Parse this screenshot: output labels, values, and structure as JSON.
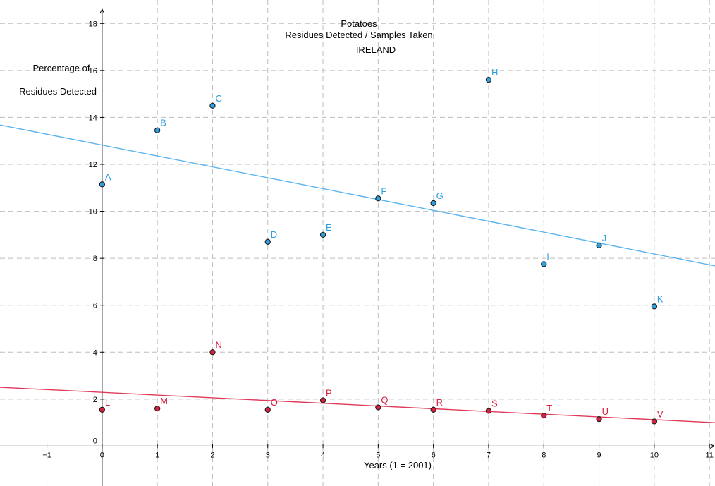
{
  "chart_data": {
    "type": "scatter",
    "title_lines": [
      "Potatoes",
      "Residues Detected / Samples Taken",
      "IRELAND"
    ],
    "ylabel_lines": [
      "Percentage of",
      "Residues Detected"
    ],
    "xlabel": "Years (1 = 2001)",
    "xlim": [
      -1.85,
      11.1
    ],
    "ylim": [
      -1.7,
      19.0
    ],
    "x_ticks": [
      -1,
      0,
      1,
      2,
      3,
      4,
      5,
      6,
      7,
      8,
      9,
      10,
      11
    ],
    "x_tick_labels": [
      "−1",
      "0",
      "1",
      "2",
      "3",
      "4",
      "5",
      "6",
      "7",
      "8",
      "9",
      "10",
      "11"
    ],
    "y_ticks": [
      2,
      4,
      6,
      8,
      10,
      12,
      14,
      16,
      18
    ],
    "y_tick_labels": [
      "2",
      "4",
      "6",
      "8",
      "10",
      "12",
      "14",
      "16",
      "18"
    ],
    "origin_label": "0",
    "grid": true,
    "series": [
      {
        "color": "#2f9fe0",
        "line_color": "#5ab4ee",
        "points": [
          {
            "label": "A",
            "x": 0,
            "y": 11.15
          },
          {
            "label": "B",
            "x": 1,
            "y": 13.45
          },
          {
            "label": "C",
            "x": 2,
            "y": 14.5
          },
          {
            "label": "D",
            "x": 3,
            "y": 8.7
          },
          {
            "label": "E",
            "x": 4,
            "y": 9.0
          },
          {
            "label": "F",
            "x": 5,
            "y": 10.55
          },
          {
            "label": "G",
            "x": 6,
            "y": 10.35
          },
          {
            "label": "H",
            "x": 7,
            "y": 15.6
          },
          {
            "label": "I",
            "x": 8,
            "y": 7.75
          },
          {
            "label": "J",
            "x": 9,
            "y": 8.55
          },
          {
            "label": "K",
            "x": 10,
            "y": 5.95
          }
        ],
        "trendline": {
          "slope": -0.4635,
          "intercept": 12.82
        }
      },
      {
        "color": "#d8203f",
        "line_color": "#e03a5a",
        "points": [
          {
            "label": "L",
            "x": 0,
            "y": 1.55
          },
          {
            "label": "M",
            "x": 1,
            "y": 1.6
          },
          {
            "label": "N",
            "x": 2,
            "y": 4.0
          },
          {
            "label": "O",
            "x": 3,
            "y": 1.55
          },
          {
            "label": "P",
            "x": 4,
            "y": 1.95
          },
          {
            "label": "Q",
            "x": 5,
            "y": 1.65
          },
          {
            "label": "R",
            "x": 6,
            "y": 1.55
          },
          {
            "label": "S",
            "x": 7,
            "y": 1.5
          },
          {
            "label": "T",
            "x": 8,
            "y": 1.3
          },
          {
            "label": "U",
            "x": 9,
            "y": 1.15
          },
          {
            "label": "V",
            "x": 10,
            "y": 1.05
          }
        ],
        "trendline": {
          "slope": -0.1164,
          "intercept": 2.29
        }
      }
    ]
  }
}
